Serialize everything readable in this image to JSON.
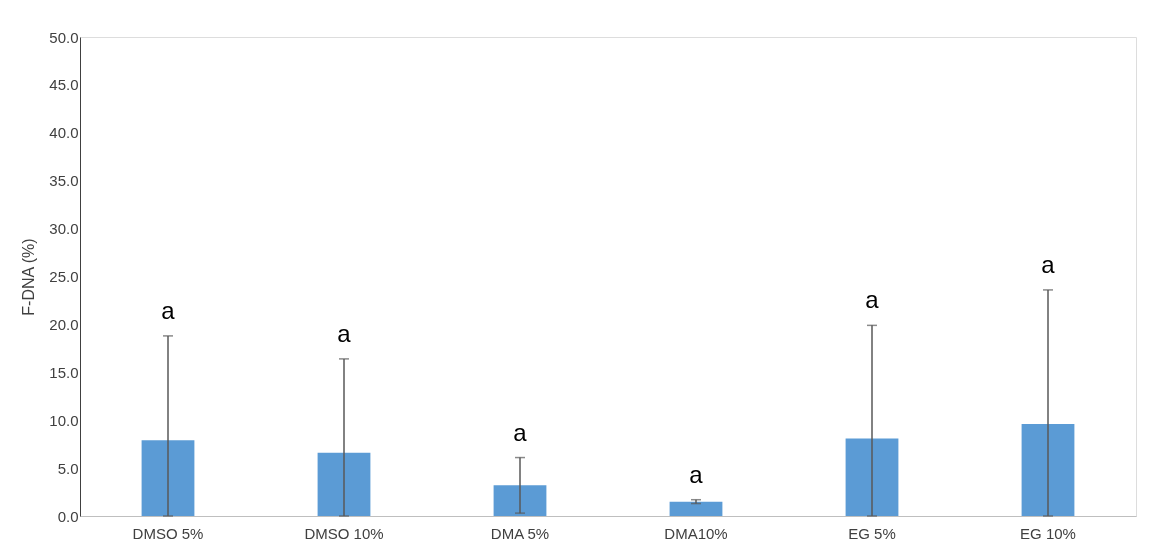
{
  "chart_data": {
    "type": "bar",
    "ylabel": "F-DNA (%)",
    "categories": [
      "DMSO 5%",
      "DMSO 10%",
      "DMA 5%",
      "DMA10%",
      "EG 5%",
      "EG 10%"
    ],
    "values": [
      7.9,
      6.6,
      3.2,
      1.5,
      8.1,
      9.6
    ],
    "errors": [
      [
        0,
        18.8
      ],
      [
        0,
        16.4
      ],
      [
        0.3,
        6.1
      ],
      [
        1.3,
        1.7
      ],
      [
        0,
        19.9
      ],
      [
        0,
        23.6
      ]
    ],
    "color": "#5b9bd5",
    "ylim": [
      0,
      50
    ],
    "yticks": [
      {
        "value": 0,
        "label": "0.0"
      },
      {
        "value": 5,
        "label": "5.0"
      },
      {
        "value": 10,
        "label": "10.0"
      },
      {
        "value": 15,
        "label": "15.0"
      },
      {
        "value": 20,
        "label": "20.0"
      },
      {
        "value": 25,
        "label": "25.0"
      },
      {
        "value": 30,
        "label": "30.0"
      },
      {
        "value": 35,
        "label": "35.0"
      },
      {
        "value": 40,
        "label": "40.0"
      },
      {
        "value": 45,
        "label": "45.0"
      },
      {
        "value": 50,
        "label": "50.0"
      }
    ],
    "annotations": [
      "a",
      "a",
      "a",
      "a",
      "a",
      "a"
    ],
    "grid": false
  }
}
